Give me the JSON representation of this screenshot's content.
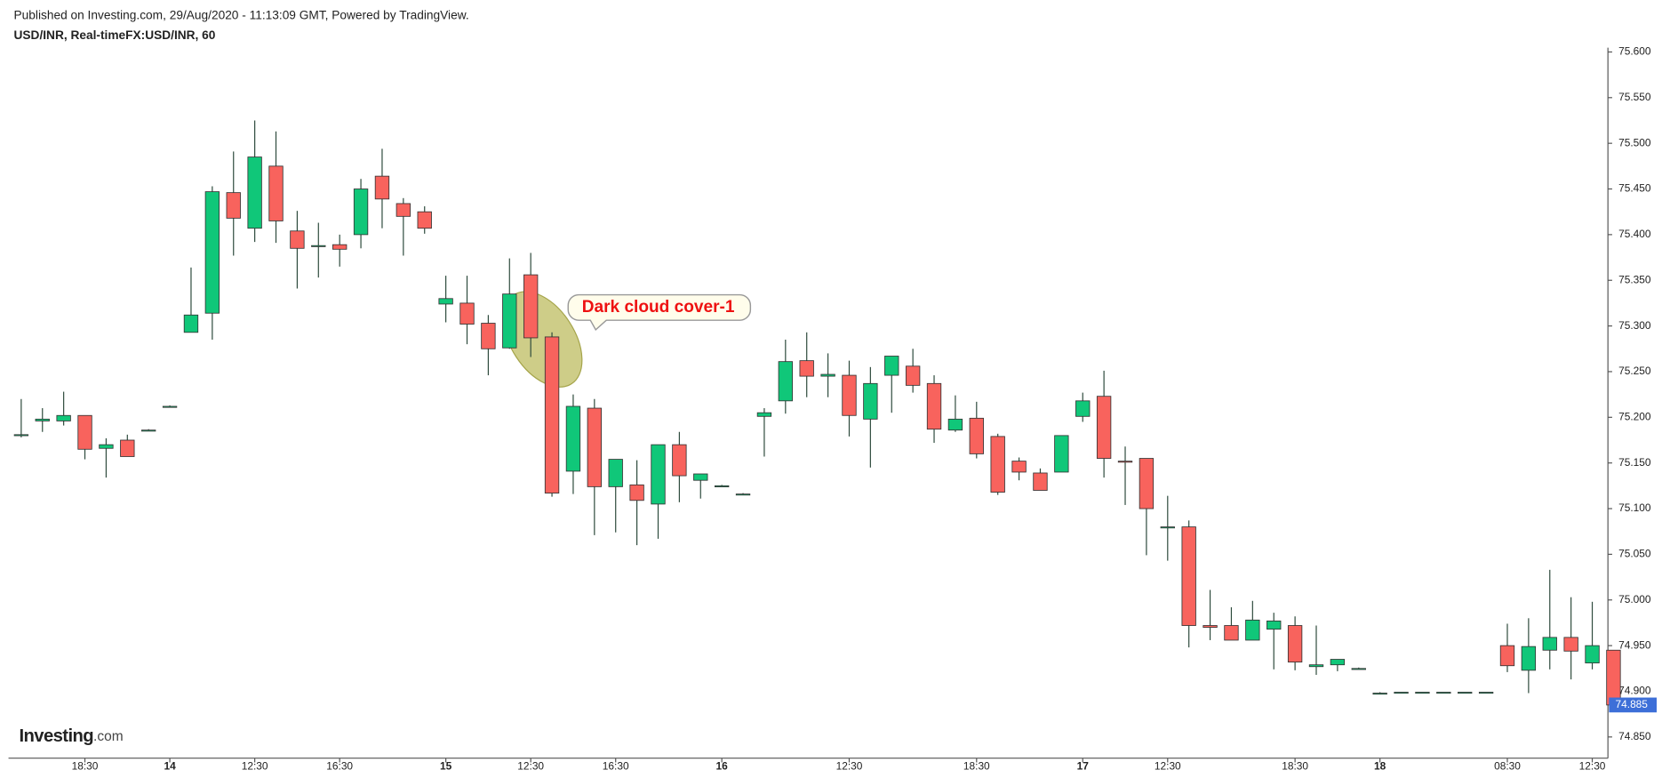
{
  "chart_data": {
    "type": "candlestick",
    "published": "Published on Investing.com, 29/Aug/2020 - 11:13:09 GMT, Powered by TradingView.",
    "title": "USD/INR, Real-timeFX:USD/INR, 60",
    "annotation": "Dark cloud cover-1",
    "logo": "Investing",
    "logo_suffix": ".com",
    "up_color": "#10c779",
    "down_color": "#f8635d",
    "last_price": 74.885,
    "categories": [
      null,
      null,
      null,
      "18:30",
      null,
      null,
      null,
      "14",
      null,
      null,
      null,
      "12:30",
      null,
      null,
      null,
      "16:30",
      null,
      null,
      null,
      null,
      "15",
      null,
      null,
      null,
      "12:30",
      null,
      null,
      null,
      "16:30",
      null,
      null,
      null,
      null,
      "16",
      null,
      null,
      null,
      null,
      null,
      "12:30",
      null,
      null,
      null,
      null,
      null,
      "18:30",
      null,
      null,
      null,
      null,
      "17",
      null,
      null,
      null,
      "12:30",
      null,
      null,
      null,
      null,
      null,
      "18:30",
      null,
      null,
      null,
      "18",
      null,
      null,
      null,
      null,
      null,
      "08:30",
      null,
      null,
      null,
      "12:30",
      null
    ],
    "open": [
      75.18,
      75.196,
      75.196,
      75.202,
      75.166,
      75.175,
      75.186,
      75.212,
      75.293,
      75.314,
      75.446,
      75.407,
      75.475,
      75.404,
      75.388,
      75.389,
      75.4,
      75.464,
      75.434,
      75.425,
      75.324,
      75.325,
      75.303,
      75.276,
      75.356,
      75.288,
      75.141,
      75.21,
      75.124,
      75.126,
      75.105,
      75.17,
      75.131,
      75.125,
      75.116,
      75.201,
      75.218,
      75.262,
      75.245,
      75.246,
      75.198,
      75.246,
      75.256,
      75.237,
      75.186,
      75.199,
      75.179,
      75.152,
      75.139,
      75.14,
      75.201,
      75.223,
      75.152,
      75.155,
      75.08,
      75.08,
      74.972,
      74.972,
      74.956,
      74.968,
      74.972,
      74.927,
      74.929,
      74.925,
      74.898,
      74.899,
      74.899,
      74.899,
      74.899,
      74.899,
      74.95,
      74.923,
      74.945,
      74.959,
      74.931,
      74.945
    ],
    "high": [
      75.22,
      75.21,
      75.228,
      75.202,
      75.177,
      75.181,
      75.187,
      75.213,
      75.364,
      75.453,
      75.491,
      75.525,
      75.513,
      75.426,
      75.413,
      75.4,
      75.461,
      75.494,
      75.44,
      75.431,
      75.355,
      75.355,
      75.312,
      75.374,
      75.38,
      75.293,
      75.225,
      75.22,
      75.154,
      75.153,
      75.17,
      75.184,
      75.138,
      75.126,
      75.117,
      75.21,
      75.285,
      75.293,
      75.27,
      75.262,
      75.255,
      75.267,
      75.275,
      75.246,
      75.224,
      75.217,
      75.182,
      75.156,
      75.144,
      75.18,
      75.227,
      75.251,
      75.168,
      75.155,
      75.114,
      75.087,
      75.011,
      74.992,
      74.999,
      74.986,
      74.982,
      74.972,
      74.935,
      74.926,
      74.899,
      74.899,
      74.899,
      74.899,
      74.899,
      74.899,
      74.974,
      74.98,
      75.033,
      75.003,
      74.998,
      74.945
    ],
    "low": [
      75.178,
      75.184,
      75.191,
      75.154,
      75.134,
      75.157,
      75.185,
      75.211,
      75.293,
      75.285,
      75.377,
      75.392,
      75.391,
      75.341,
      75.353,
      75.365,
      75.385,
      75.407,
      75.377,
      75.401,
      75.304,
      75.28,
      75.246,
      75.275,
      75.266,
      75.113,
      75.116,
      75.071,
      75.074,
      75.06,
      75.067,
      75.107,
      75.111,
      75.124,
      75.115,
      75.157,
      75.204,
      75.222,
      75.222,
      75.179,
      75.145,
      75.205,
      75.227,
      75.172,
      75.184,
      75.155,
      75.115,
      75.131,
      75.12,
      75.14,
      75.195,
      75.134,
      75.104,
      75.049,
      75.043,
      74.948,
      74.956,
      74.956,
      74.956,
      74.924,
      74.923,
      74.918,
      74.922,
      74.924,
      74.897,
      74.898,
      74.898,
      74.898,
      74.898,
      74.898,
      74.921,
      74.898,
      74.924,
      74.913,
      74.924,
      74.885
    ],
    "close": [
      75.181,
      75.198,
      75.202,
      75.165,
      75.17,
      75.157,
      75.186,
      75.212,
      75.312,
      75.447,
      75.418,
      75.485,
      75.415,
      75.385,
      75.388,
      75.384,
      75.45,
      75.439,
      75.42,
      75.407,
      75.33,
      75.302,
      75.275,
      75.335,
      75.287,
      75.117,
      75.212,
      75.124,
      75.154,
      75.109,
      75.17,
      75.136,
      75.138,
      75.125,
      75.116,
      75.205,
      75.261,
      75.245,
      75.247,
      75.202,
      75.237,
      75.267,
      75.235,
      75.187,
      75.198,
      75.16,
      75.118,
      75.14,
      75.12,
      75.18,
      75.218,
      75.155,
      75.151,
      75.1,
      75.08,
      74.972,
      74.97,
      74.956,
      74.978,
      74.977,
      74.932,
      74.929,
      74.935,
      74.925,
      74.898,
      74.899,
      74.899,
      74.899,
      74.899,
      74.899,
      74.928,
      74.949,
      74.959,
      74.944,
      74.95,
      74.885
    ],
    "ylim": [
      74.827,
      75.605
    ],
    "yticks": [
      {
        "value": 74.85,
        "label": "74.850"
      },
      {
        "value": 74.9,
        "label": "74.900"
      },
      {
        "value": 74.95,
        "label": "74.950"
      },
      {
        "value": 75.0,
        "label": "75.000"
      },
      {
        "value": 75.05,
        "label": "75.050"
      },
      {
        "value": 75.1,
        "label": "75.100"
      },
      {
        "value": 75.15,
        "label": "75.150"
      },
      {
        "value": 75.2,
        "label": "75.200"
      },
      {
        "value": 75.25,
        "label": "75.250"
      },
      {
        "value": 75.3,
        "label": "75.300"
      },
      {
        "value": 75.35,
        "label": "75.350"
      },
      {
        "value": 75.4,
        "label": "75.400"
      },
      {
        "value": 75.45,
        "label": "75.450"
      },
      {
        "value": 75.5,
        "label": "75.500"
      },
      {
        "value": 75.55,
        "label": "75.550"
      },
      {
        "value": 75.6,
        "label": "75.600"
      }
    ]
  }
}
